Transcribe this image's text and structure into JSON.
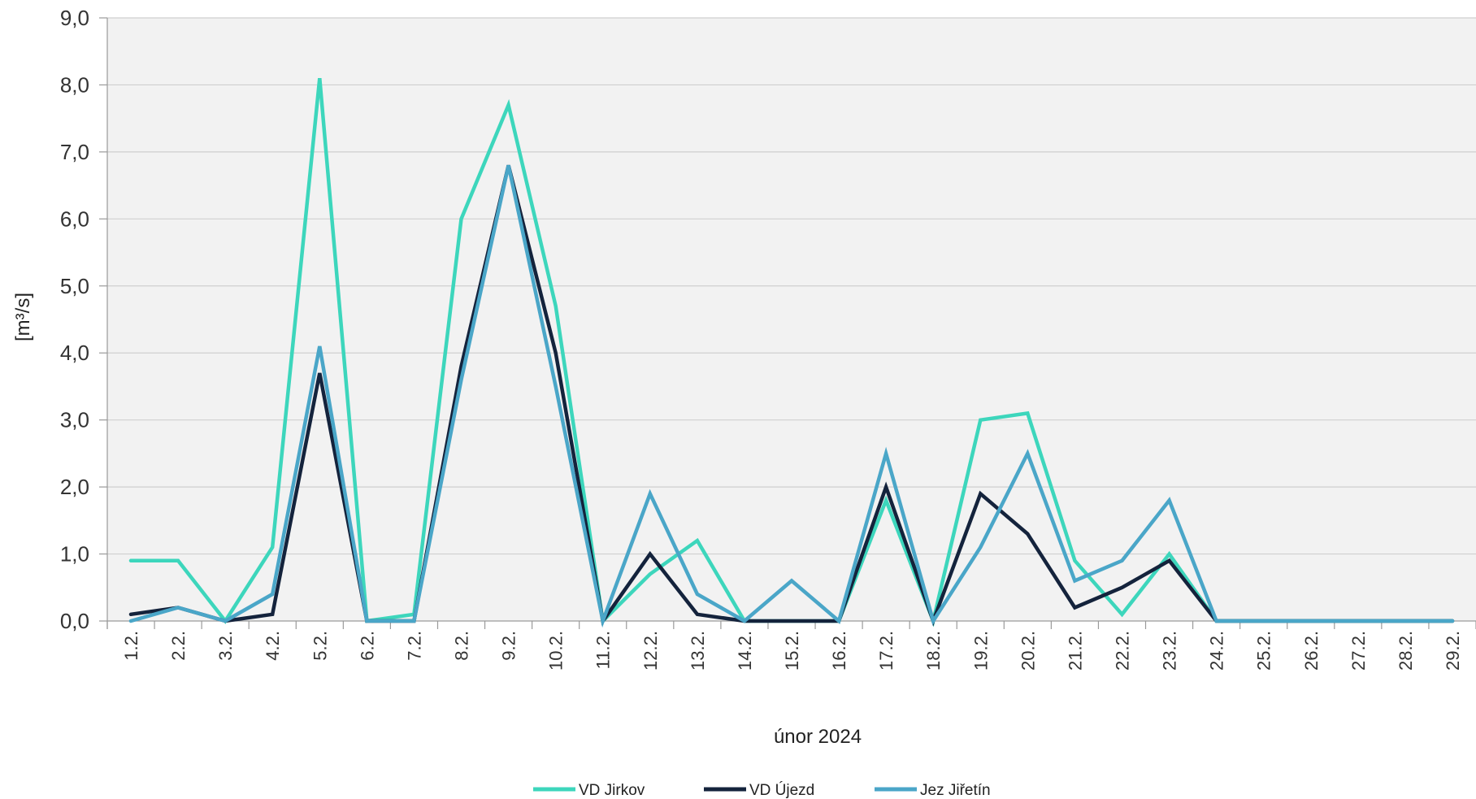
{
  "chart_data": {
    "type": "line",
    "title": "",
    "xlabel": "únor 2024",
    "ylabel": "[m³/s]",
    "ylim": [
      0,
      9
    ],
    "yticks": [
      "0,0",
      "1,0",
      "2,0",
      "3,0",
      "4,0",
      "5,0",
      "6,0",
      "7,0",
      "8,0",
      "9,0"
    ],
    "categories": [
      "1.2.",
      "2.2.",
      "3.2.",
      "4.2.",
      "5.2.",
      "6.2.",
      "7.2.",
      "8.2.",
      "9.2.",
      "10.2.",
      "11.2.",
      "12.2.",
      "13.2.",
      "14.2.",
      "15.2.",
      "16.2.",
      "17.2.",
      "18.2.",
      "19.2.",
      "20.2.",
      "21.2.",
      "22.2.",
      "23.2.",
      "24.2.",
      "25.2.",
      "26.2.",
      "27.2.",
      "28.2.",
      "29.2."
    ],
    "grid": true,
    "legend": "bottom",
    "series": [
      {
        "name": "VD Jirkov",
        "color": "#3dd6bc",
        "values": [
          0.9,
          0.9,
          0.0,
          1.1,
          8.1,
          0.0,
          0.1,
          6.0,
          7.7,
          4.7,
          0.0,
          0.7,
          1.2,
          0.0,
          0.0,
          0.0,
          1.8,
          0.0,
          3.0,
          3.1,
          0.9,
          0.1,
          1.0,
          0.0,
          0.0,
          0.0,
          0.0,
          0.0,
          0.0
        ]
      },
      {
        "name": "VD Újezd",
        "color": "#14233c",
        "values": [
          0.1,
          0.2,
          0.0,
          0.1,
          3.7,
          0.0,
          0.0,
          3.8,
          6.8,
          4.0,
          0.0,
          1.0,
          0.1,
          0.0,
          0.0,
          0.0,
          2.0,
          0.0,
          1.9,
          1.3,
          0.2,
          0.5,
          0.9,
          0.0,
          0.0,
          0.0,
          0.0,
          0.0,
          0.0
        ]
      },
      {
        "name": "Jez Jiřetín",
        "color": "#4aa6c8",
        "values": [
          0.0,
          0.2,
          0.0,
          0.4,
          4.1,
          0.0,
          0.0,
          3.6,
          6.8,
          3.5,
          0.0,
          1.9,
          0.4,
          0.0,
          0.6,
          0.0,
          2.5,
          0.0,
          1.1,
          2.5,
          0.6,
          0.9,
          1.8,
          0.0,
          0.0,
          0.0,
          0.0,
          0.0,
          0.0
        ]
      }
    ]
  }
}
